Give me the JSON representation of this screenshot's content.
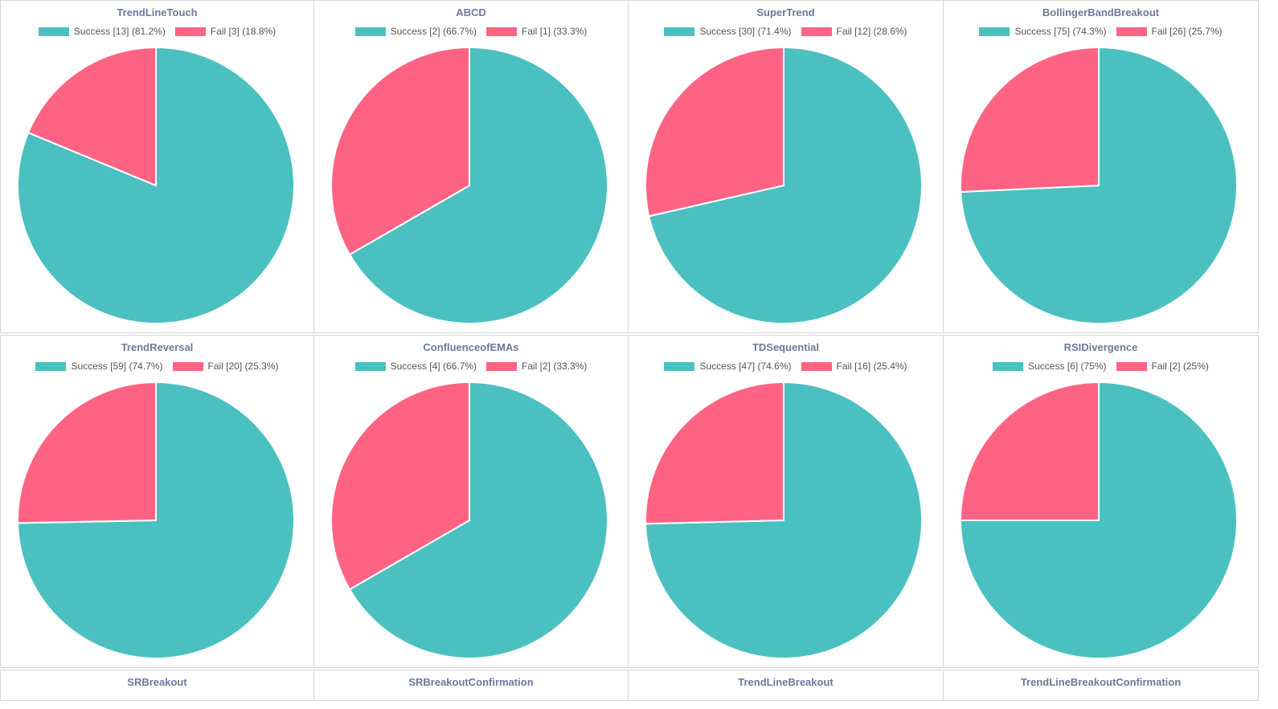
{
  "colors": {
    "success": "#4bc0c0",
    "fail": "#ff6384",
    "title": "#6b7a99",
    "legend_text": "#555555",
    "slice_border": "#ffffff"
  },
  "chart_data": [
    {
      "type": "pie",
      "title": "TrendLineTouch",
      "labels": [
        "Success",
        "Fail"
      ],
      "values": [
        13,
        3
      ],
      "legend": [
        "Success [13] (81.2%)",
        "Fail [3] (18.8%)"
      ]
    },
    {
      "type": "pie",
      "title": "ABCD",
      "labels": [
        "Success",
        "Fail"
      ],
      "values": [
        2,
        1
      ],
      "legend": [
        "Success [2] (66.7%)",
        "Fail [1] (33.3%)"
      ]
    },
    {
      "type": "pie",
      "title": "SuperTrend",
      "labels": [
        "Success",
        "Fail"
      ],
      "values": [
        30,
        12
      ],
      "legend": [
        "Success [30] (71.4%)",
        "Fail [12] (28.6%)"
      ]
    },
    {
      "type": "pie",
      "title": "BollingerBandBreakout",
      "labels": [
        "Success",
        "Fail"
      ],
      "values": [
        75,
        26
      ],
      "legend": [
        "Success [75] (74.3%)",
        "Fail [26] (25.7%)"
      ]
    },
    {
      "type": "pie",
      "title": "TrendReversal",
      "labels": [
        "Success",
        "Fail"
      ],
      "values": [
        59,
        20
      ],
      "legend": [
        "Success [59] (74.7%)",
        "Fail [20] (25.3%)"
      ]
    },
    {
      "type": "pie",
      "title": "ConfluenceofEMAs",
      "labels": [
        "Success",
        "Fail"
      ],
      "values": [
        4,
        2
      ],
      "legend": [
        "Success [4] (66.7%)",
        "Fail [2] (33.3%)"
      ]
    },
    {
      "type": "pie",
      "title": "TDSequential",
      "labels": [
        "Success",
        "Fail"
      ],
      "values": [
        47,
        16
      ],
      "legend": [
        "Success [47] (74.6%)",
        "Fail [16] (25.4%)"
      ]
    },
    {
      "type": "pie",
      "title": "RSIDivergence",
      "labels": [
        "Success",
        "Fail"
      ],
      "values": [
        6,
        2
      ],
      "legend": [
        "Success [6] (75%)",
        "Fail [2] (25%)"
      ]
    },
    {
      "type": "pie",
      "title": "SRBreakout"
    },
    {
      "type": "pie",
      "title": "SRBreakoutConfirmation"
    },
    {
      "type": "pie",
      "title": "TrendLineBreakout"
    },
    {
      "type": "pie",
      "title": "TrendLineBreakoutConfirmation"
    }
  ]
}
